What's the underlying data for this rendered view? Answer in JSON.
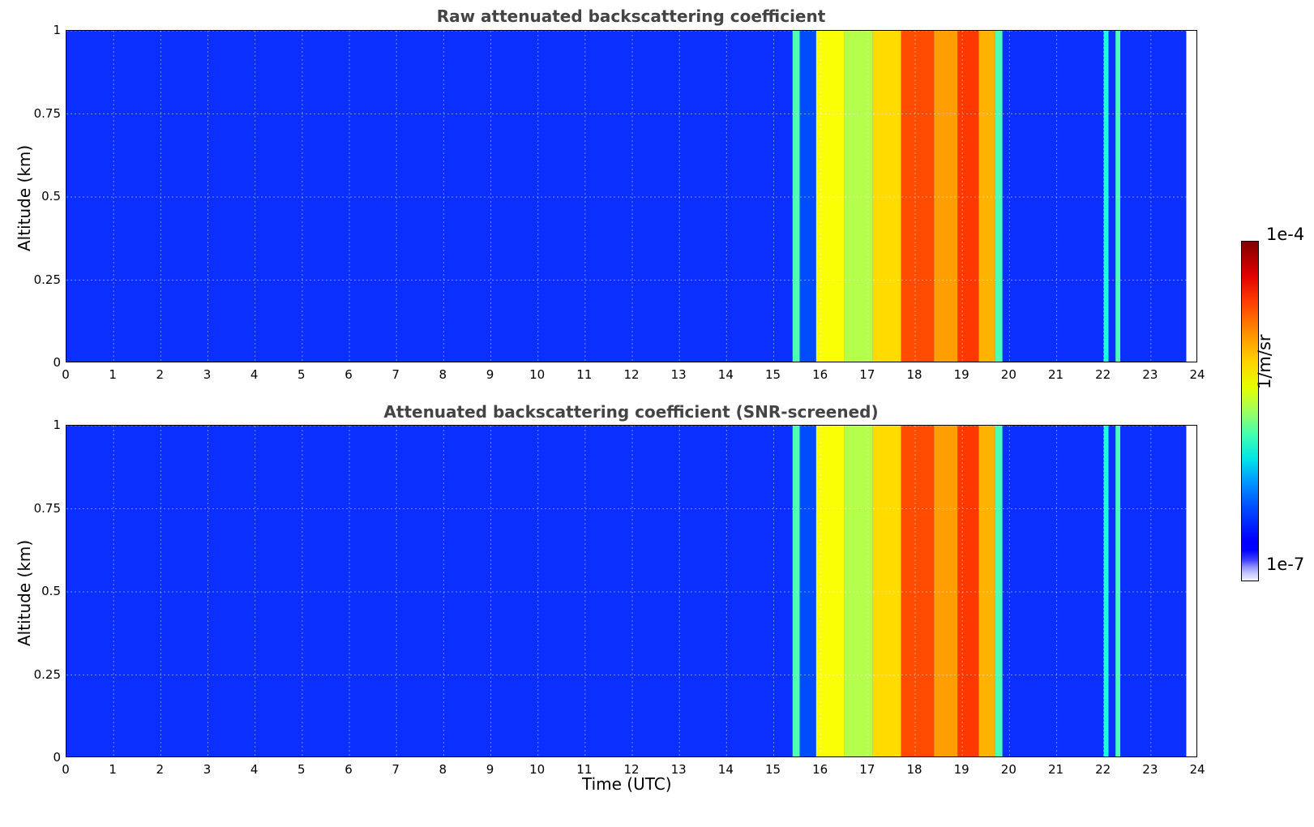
{
  "chart_data": [
    {
      "type": "heatmap",
      "title": "Raw attenuated backscattering coefficient",
      "xlabel": "",
      "ylabel": "Altitude (km)",
      "xlim": [
        0,
        24
      ],
      "ylim": [
        0,
        1
      ],
      "xticks": [
        "0",
        "1",
        "2",
        "3",
        "4",
        "5",
        "6",
        "7",
        "8",
        "9",
        "10",
        "11",
        "12",
        "13",
        "14",
        "15",
        "16",
        "17",
        "18",
        "19",
        "20",
        "21",
        "22",
        "23",
        "24"
      ],
      "yticks": [
        "0",
        "0.25",
        "0.5",
        "0.75",
        "1"
      ],
      "grid": true,
      "data_end_hour": 23.75,
      "bands": [
        {
          "start": 15.4,
          "end": 15.55,
          "level": 0.45
        },
        {
          "start": 15.55,
          "end": 15.9,
          "level": 0.2
        },
        {
          "start": 15.9,
          "end": 16.5,
          "level": 0.62
        },
        {
          "start": 16.5,
          "end": 17.1,
          "level": 0.55
        },
        {
          "start": 17.1,
          "end": 17.7,
          "level": 0.66
        },
        {
          "start": 17.7,
          "end": 18.4,
          "level": 0.8
        },
        {
          "start": 18.4,
          "end": 18.9,
          "level": 0.72
        },
        {
          "start": 18.9,
          "end": 19.35,
          "level": 0.82
        },
        {
          "start": 19.35,
          "end": 19.7,
          "level": 0.7
        },
        {
          "start": 19.7,
          "end": 19.85,
          "level": 0.45
        },
        {
          "start": 22.0,
          "end": 22.1,
          "level": 0.4
        },
        {
          "start": 22.25,
          "end": 22.35,
          "level": 0.45
        }
      ]
    },
    {
      "type": "heatmap",
      "title": "Attenuated backscattering coefficient (SNR-screened)",
      "xlabel": "Time (UTC)",
      "ylabel": "Altitude (km)",
      "xlim": [
        0,
        24
      ],
      "ylim": [
        0,
        1
      ],
      "xticks": [
        "0",
        "1",
        "2",
        "3",
        "4",
        "5",
        "6",
        "7",
        "8",
        "9",
        "10",
        "11",
        "12",
        "13",
        "14",
        "15",
        "16",
        "17",
        "18",
        "19",
        "20",
        "21",
        "22",
        "23",
        "24"
      ],
      "yticks": [
        "0",
        "0.25",
        "0.5",
        "0.75",
        "1"
      ],
      "grid": true,
      "data_end_hour": 23.75,
      "bands": [
        {
          "start": 15.4,
          "end": 15.55,
          "level": 0.45
        },
        {
          "start": 15.55,
          "end": 15.9,
          "level": 0.2
        },
        {
          "start": 15.9,
          "end": 16.5,
          "level": 0.62
        },
        {
          "start": 16.5,
          "end": 17.1,
          "level": 0.55
        },
        {
          "start": 17.1,
          "end": 17.7,
          "level": 0.66
        },
        {
          "start": 17.7,
          "end": 18.4,
          "level": 0.8
        },
        {
          "start": 18.4,
          "end": 18.9,
          "level": 0.72
        },
        {
          "start": 18.9,
          "end": 19.35,
          "level": 0.82
        },
        {
          "start": 19.35,
          "end": 19.7,
          "level": 0.7
        },
        {
          "start": 19.7,
          "end": 19.85,
          "level": 0.45
        },
        {
          "start": 22.0,
          "end": 22.1,
          "level": 0.4
        },
        {
          "start": 22.25,
          "end": 22.35,
          "level": 0.45
        }
      ]
    }
  ],
  "colorbar": {
    "max_label": "1e-4",
    "min_label": "1e-7",
    "unit_label": "1/m/sr",
    "colormap": "jet",
    "background_color": "#0a2fff"
  }
}
